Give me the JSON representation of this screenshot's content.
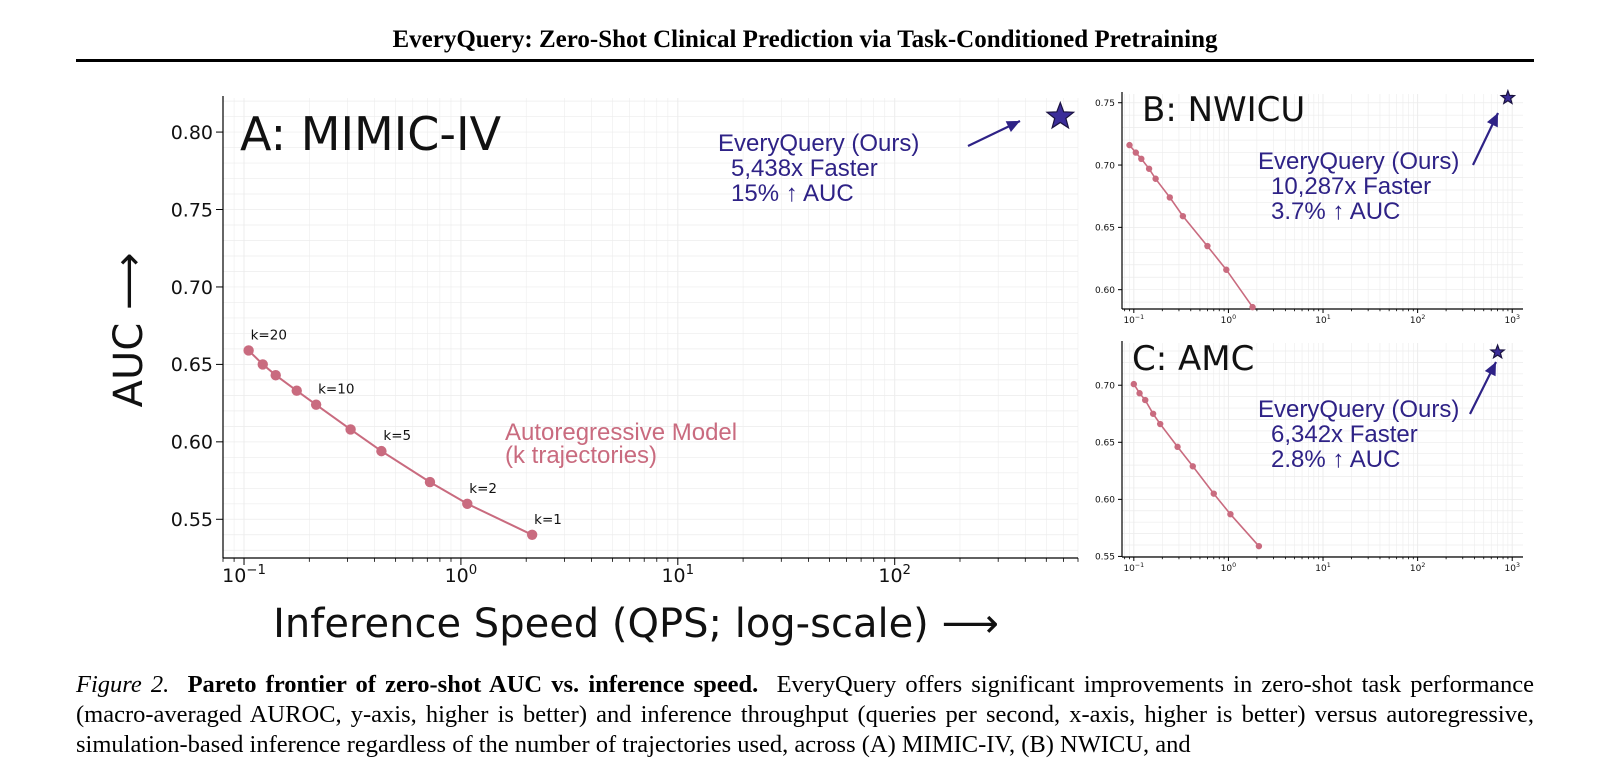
{
  "header": {
    "title": "EveryQuery: Zero-Shot Clinical Prediction via Task-Conditioned Pretraining"
  },
  "colors": {
    "autoregressive": "#c96b7f",
    "everyquery": "#2e2286",
    "star_fill": "#3b2d99",
    "axis": "#000000",
    "grid": "#ececec"
  },
  "chart_data": [
    {
      "id": "A",
      "type": "scatter",
      "title": "A: MIMIC-IV",
      "xlabel": "Inference Speed (QPS; log-scale) ⟶",
      "ylabel": "AUC ⟶",
      "xscale": "log",
      "xlim": [
        0.08,
        700
      ],
      "ylim": [
        0.525,
        0.822
      ],
      "yticks": [
        "0.55",
        "0.60",
        "0.65",
        "0.70",
        "0.75",
        "0.80"
      ],
      "xticks": [
        {
          "value": 0.1,
          "base": "10",
          "exp": "−1"
        },
        {
          "value": 1,
          "base": "10",
          "exp": "0"
        },
        {
          "value": 10,
          "base": "10",
          "exp": "1"
        },
        {
          "value": 100,
          "base": "10",
          "exp": "2"
        }
      ],
      "grid": true,
      "series": [
        {
          "name": "Autoregressive Model",
          "name_line2": "(k trajectories)",
          "marker": "circle",
          "x": [
            0.105,
            0.122,
            0.14,
            0.175,
            0.215,
            0.31,
            0.43,
            0.72,
            1.07,
            2.13
          ],
          "y": [
            0.659,
            0.65,
            0.643,
            0.633,
            0.624,
            0.608,
            0.594,
            0.574,
            0.56,
            0.54
          ]
        },
        {
          "name": "EveryQuery (Ours)",
          "marker": "star",
          "x": [
            580
          ],
          "y": [
            0.81
          ]
        }
      ],
      "point_labels": [
        {
          "text": "k=20",
          "x": 0.105,
          "y": 0.659
        },
        {
          "text": "k=10",
          "x": 0.215,
          "y": 0.624
        },
        {
          "text": "k=5",
          "x": 0.43,
          "y": 0.594
        },
        {
          "text": "k=2",
          "x": 1.07,
          "y": 0.56
        },
        {
          "text": "k=1",
          "x": 2.13,
          "y": 0.54
        }
      ],
      "annotation": [
        "EveryQuery (Ours)",
        "5,438x Faster",
        "15% ↑ AUC"
      ]
    },
    {
      "id": "B",
      "type": "scatter",
      "title": "B: NWICU",
      "xscale": "log",
      "xlim": [
        0.075,
        1300
      ],
      "ylim": [
        0.5845,
        0.757
      ],
      "yticks": [
        "0.60",
        "0.65",
        "0.70",
        "0.75"
      ],
      "xticks": [
        {
          "value": 0.1,
          "base": "10",
          "exp": "−1"
        },
        {
          "value": 1,
          "base": "10",
          "exp": "0"
        },
        {
          "value": 10,
          "base": "10",
          "exp": "1"
        },
        {
          "value": 100,
          "base": "10",
          "exp": "2"
        },
        {
          "value": 1000,
          "base": "10",
          "exp": "3"
        }
      ],
      "grid": true,
      "series": [
        {
          "name": "Autoregressive Model",
          "marker": "circle",
          "x": [
            0.09,
            0.105,
            0.12,
            0.145,
            0.17,
            0.24,
            0.33,
            0.6,
            0.95,
            1.8
          ],
          "y": [
            0.716,
            0.71,
            0.705,
            0.697,
            0.689,
            0.674,
            0.659,
            0.635,
            0.616,
            0.586
          ]
        },
        {
          "name": "EveryQuery (Ours)",
          "marker": "star",
          "x": [
            900
          ],
          "y": [
            0.754
          ]
        }
      ],
      "annotation": [
        "EveryQuery (Ours)",
        "10,287x Faster",
        "3.7% ↑ AUC"
      ]
    },
    {
      "id": "C",
      "type": "scatter",
      "title": "C: AMC",
      "xscale": "log",
      "xlim": [
        0.075,
        1300
      ],
      "ylim": [
        0.5495,
        0.737
      ],
      "yticks": [
        "0.55",
        "0.60",
        "0.65",
        "0.70"
      ],
      "xticks": [
        {
          "value": 0.1,
          "base": "10",
          "exp": "−1"
        },
        {
          "value": 1,
          "base": "10",
          "exp": "0"
        },
        {
          "value": 10,
          "base": "10",
          "exp": "1"
        },
        {
          "value": 100,
          "base": "10",
          "exp": "2"
        },
        {
          "value": 1000,
          "base": "10",
          "exp": "3"
        }
      ],
      "grid": true,
      "series": [
        {
          "name": "Autoregressive Model",
          "marker": "circle",
          "x": [
            0.1,
            0.115,
            0.132,
            0.16,
            0.19,
            0.29,
            0.42,
            0.7,
            1.05,
            2.1
          ],
          "y": [
            0.701,
            0.693,
            0.687,
            0.675,
            0.666,
            0.646,
            0.629,
            0.605,
            0.587,
            0.559
          ]
        },
        {
          "name": "EveryQuery (Ours)",
          "marker": "star",
          "x": [
            700
          ],
          "y": [
            0.729
          ]
        }
      ],
      "annotation": [
        "EveryQuery (Ours)",
        "6,342x Faster",
        "2.8% ↑ AUC"
      ]
    }
  ],
  "caption": {
    "label": "Figure 2.",
    "bold": "Pareto frontier of zero-shot AUC vs. inference speed.",
    "text": "EveryQuery offers significant improvements in zero-shot task performance (macro-averaged AUROC, y-axis, higher is better) and inference throughput (queries per second, x-axis, higher is better) versus autoregressive, simulation-based inference regardless of the number of trajectories used, across (A) MIMIC-IV, (B) NWICU, and"
  }
}
